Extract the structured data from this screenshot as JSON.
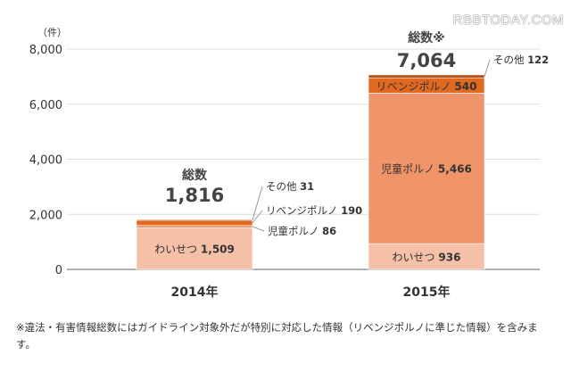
{
  "watermark": "RBBTODAY.COM",
  "footnote": "※違法・有害情報総数にはガイドライン対象外だが特別に対応した情報（リベンジポルノに準じた情報）を含みます。",
  "chart_data": {
    "type": "bar",
    "stacked": true,
    "yunit": "（件）",
    "ylim": [
      0,
      8000
    ],
    "yticks": [
      "0",
      "2,000",
      "4,000",
      "6,000",
      "8,000"
    ],
    "grid": true,
    "categories": [
      "2014年",
      "2015年"
    ],
    "totals": [
      {
        "label": "総数",
        "value": "1,816"
      },
      {
        "label": "総数※",
        "value": "7,064"
      }
    ],
    "series": [
      {
        "name": "わいせつ",
        "values": [
          1509,
          936
        ],
        "color": "#f5c0a8"
      },
      {
        "name": "児童ポルノ",
        "values": [
          86,
          5466
        ],
        "color": "#f0956a"
      },
      {
        "name": "リベンジポルノ",
        "values": [
          190,
          540
        ],
        "color": "#e0691f"
      },
      {
        "name": "その他",
        "values": [
          31,
          122
        ],
        "color": "#b9531a"
      }
    ]
  }
}
